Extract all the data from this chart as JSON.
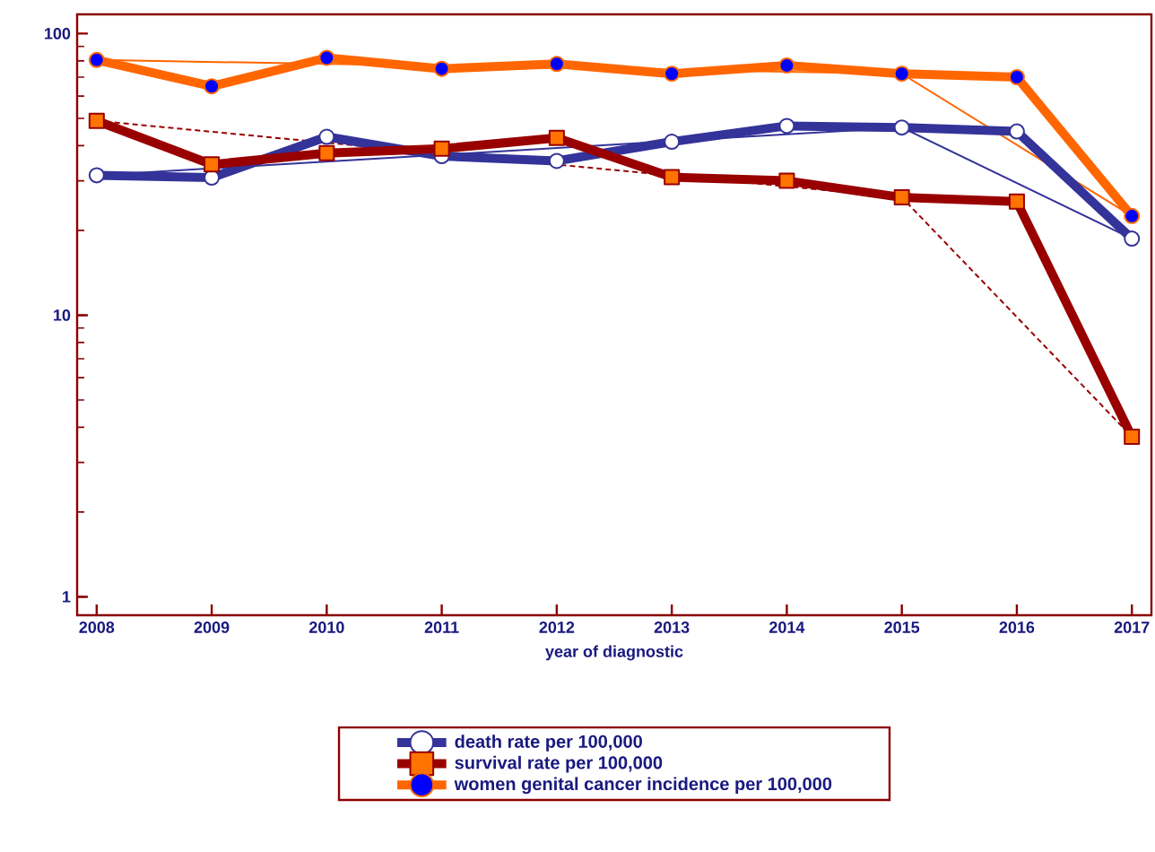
{
  "chart_data": {
    "type": "line",
    "xlabel": "year of diagnostic",
    "log": "y",
    "legend": "bottom",
    "line_style": "solid",
    "x": [
      2008,
      2009,
      2010,
      2011,
      2012,
      2013,
      2014,
      2015,
      2016,
      2017
    ],
    "xlim": [
      2007.83,
      2017.17
    ],
    "ylim": [
      0.86,
      117
    ],
    "xticks": [
      2008,
      2009,
      2010,
      2011,
      2012,
      2013,
      2014,
      2015,
      2016,
      2017
    ],
    "yticks": [
      1,
      10,
      100
    ],
    "series": [
      {
        "name": "death rate per 100,000",
        "color": "#333399",
        "marker": "circle",
        "values": [
          31.4,
          30.8,
          43,
          36.7,
          35.3,
          41.3,
          47,
          46.4,
          44.9,
          18.7
        ]
      },
      {
        "name": "survival rate per 100,000",
        "color": "#990000",
        "marker": "square",
        "values": [
          49,
          34.3,
          37.6,
          39,
          42.6,
          30.9,
          30,
          26.2,
          25.3,
          3.7
        ]
      },
      {
        "name": "women genital cancer incidence per 100,000",
        "color": "#ff6600",
        "marker": "circle",
        "values": [
          80.6,
          65,
          82,
          75,
          78,
          72,
          77,
          72,
          70,
          22.5
        ]
      },
      {
        "type": "line",
        "color": "#333399",
        "marker": "none",
        "x": [
          2008,
          2015,
          2017
        ],
        "values": [
          31.4,
          46.4,
          18.7
        ]
      },
      {
        "type": "line",
        "color": "#990000",
        "marker": "none",
        "line_style": "dashed",
        "x": [
          2008,
          2015,
          2017
        ],
        "values": [
          49,
          26.2,
          3.7
        ]
      },
      {
        "type": "line",
        "color": "#ff6600",
        "marker": "none",
        "x": [
          2008,
          2015,
          2017
        ],
        "values": [
          80.6,
          72,
          22.5
        ]
      }
    ]
  }
}
